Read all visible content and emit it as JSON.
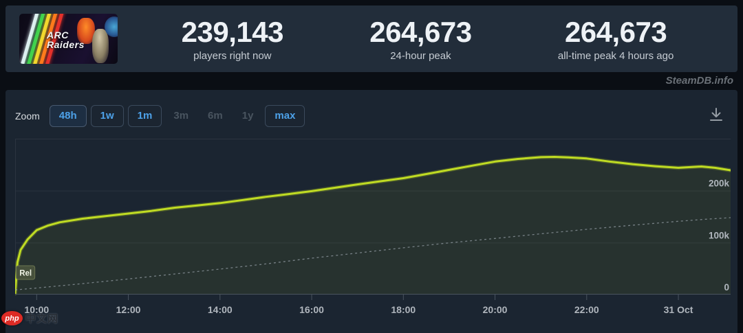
{
  "header": {
    "capsule": {
      "title_line1": "ARC",
      "title_line2": "Raiders",
      "alt": "ARC Raiders game capsule"
    },
    "stats": [
      {
        "value": "239,143",
        "label": "players right now"
      },
      {
        "value": "264,673",
        "label": "24-hour peak"
      },
      {
        "value": "264,673",
        "label": "all-time peak 4 hours ago"
      }
    ]
  },
  "attribution": "SteamDB.info",
  "toolbar": {
    "zoom_label": "Zoom",
    "ranges": [
      {
        "label": "48h",
        "state": "active"
      },
      {
        "label": "1w",
        "state": "normal"
      },
      {
        "label": "1m",
        "state": "normal"
      },
      {
        "label": "3m",
        "state": "disabled"
      },
      {
        "label": "6m",
        "state": "disabled"
      },
      {
        "label": "1y",
        "state": "disabled"
      },
      {
        "label": "max",
        "state": "normal"
      }
    ],
    "download_icon": "download-icon"
  },
  "colors": {
    "players_line": "#c0dc23",
    "trend_line": "#9aa2ab",
    "accent_blue": "#4da1e8",
    "panel_bg": "#1b2531",
    "header_bg": "#222d3a",
    "grid": "#2b3440",
    "axis": "#4a545f"
  },
  "chart_data": {
    "type": "line",
    "title": "",
    "xlabel": "",
    "ylabel": "",
    "x_axis": {
      "note": "t = hours since 30 Oct 00:00; plot spans ~09:32 (release) to ~01:08 next day",
      "t_range": [
        9.53,
        25.14
      ],
      "ticks_t": [
        10,
        12,
        14,
        16,
        18,
        20,
        22,
        24
      ],
      "tick_labels": [
        "10:00",
        "12:00",
        "14:00",
        "16:00",
        "18:00",
        "20:00",
        "22:00",
        "31 Oct"
      ]
    },
    "y_axis": {
      "side": "right",
      "range": [
        0,
        300000
      ],
      "gridlines": [
        0,
        100000,
        200000,
        300000
      ],
      "ticks": [
        200000,
        100000,
        0
      ],
      "tick_labels": [
        "200k",
        "100k",
        "0"
      ]
    },
    "legend": "off",
    "series": [
      {
        "name": "Players",
        "style": "solid",
        "color": "#c0dc23",
        "points": [
          [
            9.53,
            2000
          ],
          [
            9.58,
            62000
          ],
          [
            9.65,
            86000
          ],
          [
            9.8,
            106000
          ],
          [
            10,
            124000
          ],
          [
            10.25,
            133000
          ],
          [
            10.5,
            139000
          ],
          [
            11,
            146000
          ],
          [
            11.5,
            151000
          ],
          [
            12,
            156000
          ],
          [
            12.5,
            161000
          ],
          [
            13,
            167000
          ],
          [
            13.5,
            171500
          ],
          [
            14,
            176000
          ],
          [
            14.5,
            182000
          ],
          [
            15,
            188000
          ],
          [
            15.5,
            193500
          ],
          [
            16,
            199000
          ],
          [
            16.5,
            205500
          ],
          [
            17,
            212000
          ],
          [
            17.5,
            218000
          ],
          [
            18,
            224000
          ],
          [
            18.5,
            232000
          ],
          [
            19,
            240000
          ],
          [
            19.5,
            248000
          ],
          [
            20,
            256000
          ],
          [
            20.5,
            261000
          ],
          [
            21,
            264500
          ],
          [
            21.3,
            265000
          ],
          [
            21.6,
            264000
          ],
          [
            22,
            262000
          ],
          [
            22.5,
            256000
          ],
          [
            23,
            251000
          ],
          [
            23.5,
            247000
          ],
          [
            24,
            244000
          ],
          [
            24.5,
            246500
          ],
          [
            24.8,
            244000
          ],
          [
            25.14,
            239143
          ]
        ]
      },
      {
        "name": "Trend (unlabeled dashed)",
        "style": "dashed",
        "color": "#9aa2ab",
        "points": [
          [
            9.53,
            9000
          ],
          [
            10,
            12500
          ],
          [
            11,
            21000
          ],
          [
            12,
            30000
          ],
          [
            13,
            39500
          ],
          [
            14,
            49000
          ],
          [
            15,
            59000
          ],
          [
            16,
            70000
          ],
          [
            17,
            80000
          ],
          [
            18,
            90000
          ],
          [
            19,
            99500
          ],
          [
            20,
            108000
          ],
          [
            21,
            117000
          ],
          [
            22,
            125500
          ],
          [
            23,
            133500
          ],
          [
            24,
            141000
          ],
          [
            24.6,
            145000
          ],
          [
            25.14,
            148000
          ]
        ]
      }
    ],
    "annotations": [
      {
        "label": "Rel",
        "t": 9.6,
        "type": "release-flag"
      }
    ]
  },
  "site_watermark": {
    "badge": "php",
    "text": "中文网"
  }
}
